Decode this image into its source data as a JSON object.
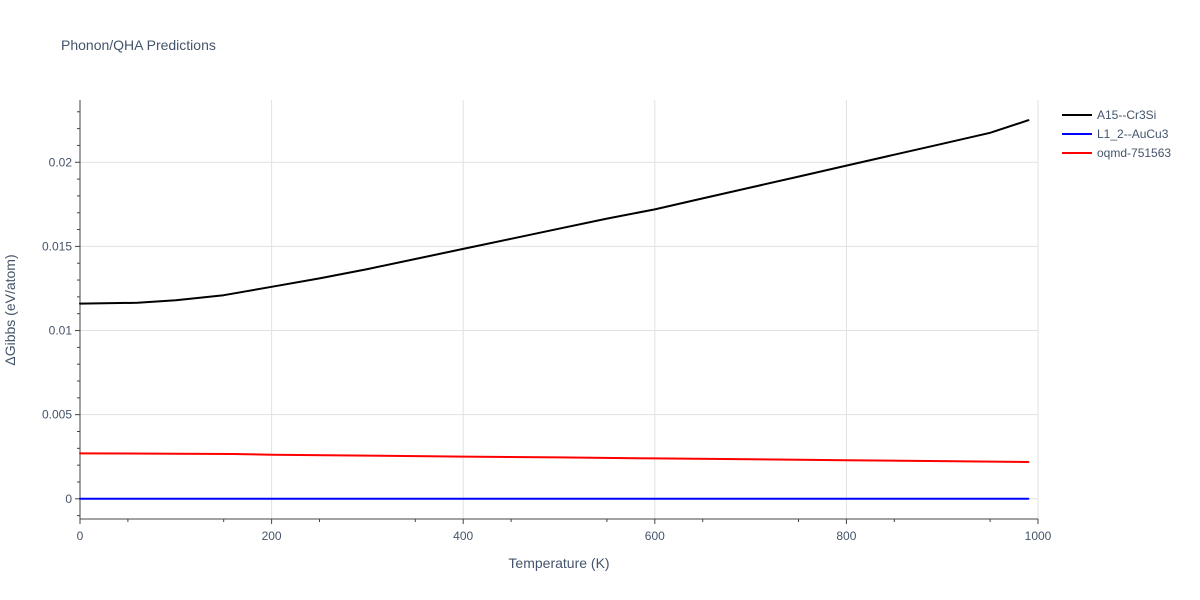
{
  "chart_data": {
    "type": "line",
    "title": "Phonon/QHA Predictions",
    "xlabel": "Temperature (K)",
    "ylabel": "ΔGibbs (eV/atom)",
    "xlim": [
      0,
      1000
    ],
    "ylim": [
      -0.0012,
      0.0237
    ],
    "x_ticks": [
      0,
      200,
      400,
      600,
      800,
      1000
    ],
    "x_tick_labels": [
      "0",
      "200",
      "400",
      "600",
      "800",
      "1000"
    ],
    "y_ticks": [
      0,
      0.005,
      0.01,
      0.015,
      0.02
    ],
    "y_tick_labels": [
      "0",
      "0.005",
      "0.01",
      "0.015",
      "0.02"
    ],
    "grid": true,
    "legend_position": "top-right",
    "series": [
      {
        "name": "A15--Cr3Si",
        "color": "#000000",
        "x": [
          0,
          60,
          100,
          150,
          200,
          250,
          300,
          350,
          400,
          450,
          500,
          550,
          600,
          650,
          700,
          750,
          800,
          850,
          900,
          950,
          990
        ],
        "y": [
          0.0116,
          0.01165,
          0.0118,
          0.0121,
          0.0126,
          0.0131,
          0.01365,
          0.01425,
          0.01485,
          0.01545,
          0.01605,
          0.01665,
          0.0172,
          0.01785,
          0.0185,
          0.01915,
          0.0198,
          0.02045,
          0.0211,
          0.02175,
          0.0225
        ]
      },
      {
        "name": "L1_2--AuCu3",
        "color": "#0000ff",
        "x": [
          0,
          200,
          400,
          600,
          800,
          990
        ],
        "y": [
          0,
          0,
          0,
          0,
          0,
          0
        ]
      },
      {
        "name": "oqmd-751563",
        "color": "#ff0000",
        "x": [
          0,
          100,
          160,
          200,
          300,
          400,
          500,
          600,
          700,
          800,
          900,
          990
        ],
        "y": [
          0.0027,
          0.00268,
          0.00266,
          0.00262,
          0.00257,
          0.00251,
          0.00246,
          0.0024,
          0.00235,
          0.00229,
          0.00224,
          0.00219
        ]
      }
    ]
  }
}
